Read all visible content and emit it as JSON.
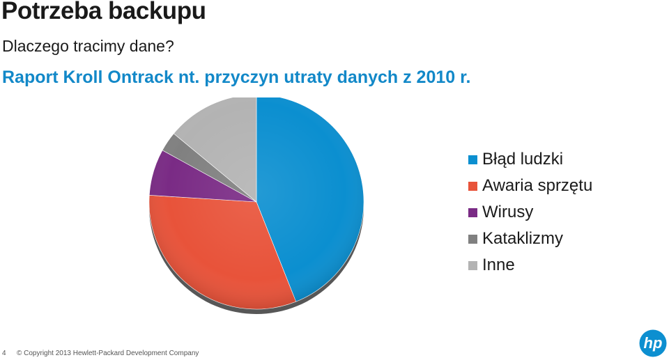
{
  "title": "Potrzeba backupu",
  "subtitle": "Dlaczego tracimy dane?",
  "footer": {
    "page_number": "4",
    "copyright": "© Copyright 2013 Hewlett-Packard Development Company"
  },
  "logo": {
    "text": "hp",
    "color": "#0d8fd0"
  },
  "accent_color": "#1288c8",
  "chart_data": {
    "type": "pie",
    "title": "Raport Kroll Ontrack nt. przyczyn utraty danych z 2010 r.",
    "legend_position": "right",
    "categories": [
      "Błąd ludzki",
      "Awaria sprzętu",
      "Wirusy",
      "Kataklizmy",
      "Inne"
    ],
    "values": [
      44,
      32,
      7,
      3,
      14
    ],
    "colors": [
      "#0b8fd0",
      "#e8533a",
      "#7a2b85",
      "#808080",
      "#b3b3b3"
    ]
  }
}
